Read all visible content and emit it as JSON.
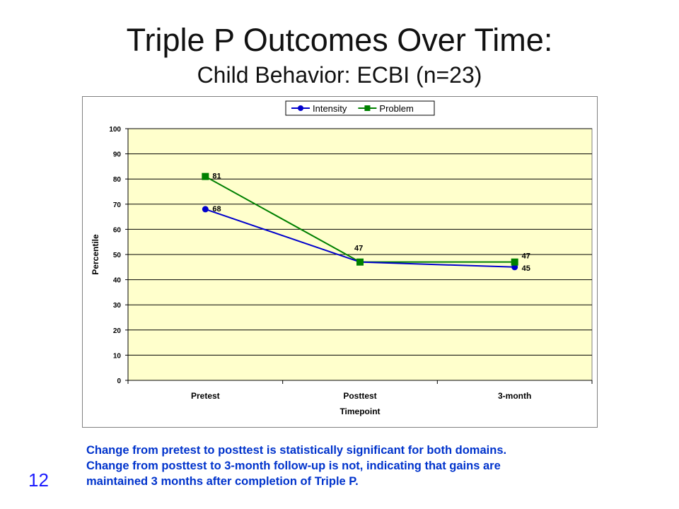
{
  "slide": {
    "title": "Triple P Outcomes Over Time:",
    "subtitle": "Child Behavior: ECBI (n=23)",
    "note_lines": [
      "Change from pretest to posttest is statistically significant for both domains.",
      "Change from posttest to 3-month follow-up is not, indicating that gains are",
      "maintained 3 months after completion of Triple P."
    ],
    "page_number": "12"
  },
  "chart_data": {
    "type": "line",
    "categories": [
      "Pretest",
      "Posttest",
      "3-month"
    ],
    "series": [
      {
        "name": "Intensity",
        "values": [
          68,
          47,
          45
        ],
        "color": "#0000cc",
        "marker": "circle"
      },
      {
        "name": "Problem",
        "values": [
          81,
          47,
          47
        ],
        "color": "#008000",
        "marker": "square"
      }
    ],
    "data_labels": [
      {
        "series": "Problem",
        "category": "Pretest",
        "text": "81"
      },
      {
        "series": "Intensity",
        "category": "Pretest",
        "text": "68"
      },
      {
        "series": "Problem",
        "category": "Posttest",
        "text": "47"
      },
      {
        "series": "Problem",
        "category": "3-month",
        "text": "47"
      },
      {
        "series": "Intensity",
        "category": "3-month",
        "text": "45"
      }
    ],
    "xlabel": "Timepoint",
    "ylabel": "Percentile",
    "ylim": [
      0,
      100
    ],
    "yticks": [
      "0",
      "10",
      "20",
      "30",
      "40",
      "50",
      "60",
      "70",
      "80",
      "90",
      "100"
    ],
    "grid": true,
    "plot_background": "#ffffcc",
    "legend_position": "top"
  }
}
